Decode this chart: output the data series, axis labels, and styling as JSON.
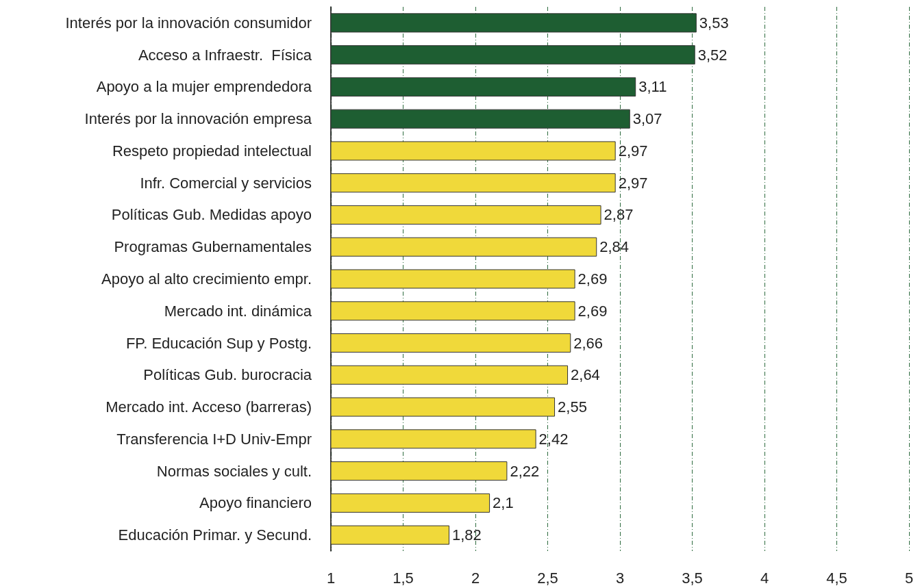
{
  "chart_data": {
    "type": "bar",
    "orientation": "horizontal",
    "categories": [
      "Interés por la innovación consumidor",
      "Acceso a Infraestr.  Física",
      "Apoyo a la mujer emprendedora",
      "Interés por la innovación empresa",
      "Respeto propiedad intelectual",
      "Infr. Comercial y servicios",
      "Políticas Gub. Medidas apoyo",
      "Programas Gubernamentales",
      "Apoyo al alto crecimiento empr.",
      "Mercado int. dinámica",
      "FP. Educación Sup y Postg.",
      "Políticas Gub. burocracia",
      "Mercado int. Acceso (barreras)",
      "Transferencia I+D Univ-Empr",
      "Normas sociales y cult.",
      "Apoyo financiero",
      "Educación Primar. y Secund."
    ],
    "values": [
      3.53,
      3.52,
      3.11,
      3.07,
      2.97,
      2.97,
      2.87,
      2.84,
      2.69,
      2.69,
      2.66,
      2.64,
      2.55,
      2.42,
      2.22,
      2.1,
      1.82
    ],
    "value_labels": [
      "3,53",
      "3,52",
      "3,11",
      "3,07",
      "2,97",
      "2,97",
      "2,87",
      "2,84",
      "2,69",
      "2,69",
      "2,66",
      "2,64",
      "2,55",
      "2,42",
      "2,22",
      "2,1",
      "1,82"
    ],
    "colors": [
      "#1e5e32",
      "#1e5e32",
      "#1e5e32",
      "#1e5e32",
      "#f0d93a",
      "#f0d93a",
      "#f0d93a",
      "#f0d93a",
      "#f0d93a",
      "#f0d93a",
      "#f0d93a",
      "#f0d93a",
      "#f0d93a",
      "#f0d93a",
      "#f0d93a",
      "#f0d93a",
      "#f0d93a"
    ],
    "xlim": [
      1,
      5
    ],
    "xticks": [
      1,
      {
        "value": 1.5,
        "label": "1,5"
      },
      2,
      {
        "value": 2.5,
        "label": "2,5"
      },
      3,
      {
        "value": 3.5,
        "label": "3,5"
      },
      4,
      {
        "value": 4.5,
        "label": "4,5"
      },
      5
    ],
    "grid": "x"
  }
}
